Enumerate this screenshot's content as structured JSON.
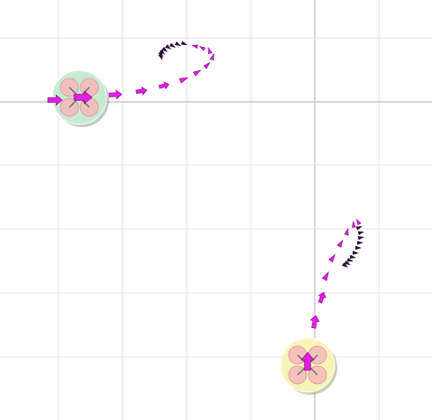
{
  "scene": {
    "background": "#ffffff",
    "grid_color": "#e3e3e3",
    "axis_color": "#c8c8c8",
    "arrow_color": "#e81ce8",
    "arrow_shadow": "#7a0a7a",
    "tick_color": "#2a0f36"
  },
  "drones": [
    {
      "id": "drone-1",
      "halo_color": "#c9ecd2",
      "halo_shadow": "#8aa191",
      "rotor_color": "#f4bcbc",
      "rotor_stroke": "#d49494",
      "heading_icon": "arrow-right-icon"
    },
    {
      "id": "drone-2",
      "halo_color": "#fbf6b8",
      "halo_shadow": "#a8a47b",
      "rotor_color": "#f4bcbc",
      "rotor_stroke": "#d49494",
      "heading_icon": "arrow-up-icon"
    }
  ]
}
